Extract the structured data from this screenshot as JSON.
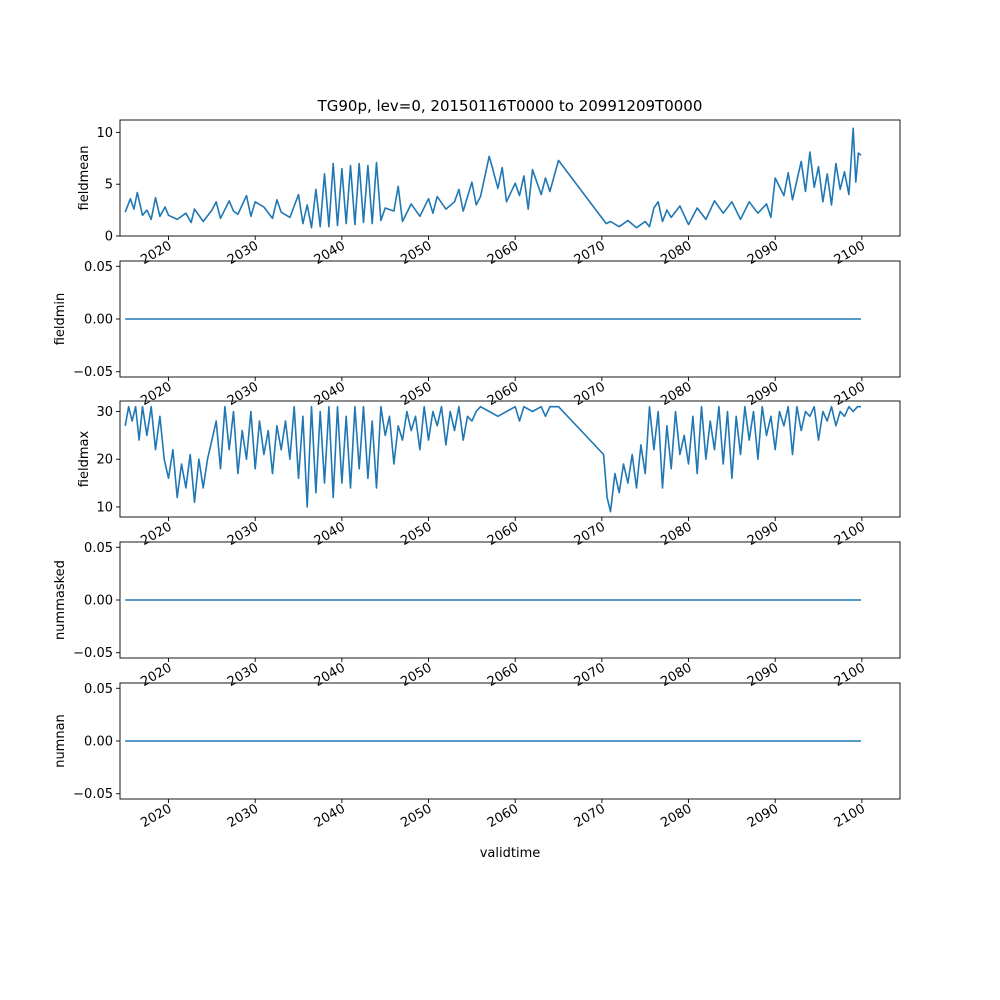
{
  "chart_data": {
    "type": "line",
    "title": "TG90p, lev=0, 20150116T0000 to 20991209T0000",
    "xlabel": "validtime",
    "line_color": "#1f77b4",
    "xlim": [
      2014.4,
      2104.4
    ],
    "xticks": [
      2020,
      2030,
      2040,
      2050,
      2060,
      2070,
      2080,
      2090,
      2100
    ],
    "panels": [
      {
        "ylabel": "fieldmean",
        "ylim": [
          0,
          11.2
        ],
        "yticks": [
          0,
          5,
          10
        ],
        "ytick_labels": [
          "0",
          "5",
          "10"
        ],
        "series": [
          {
            "x": [
              2015.0,
              2015.6,
              2016.0,
              2016.4,
              2017.0,
              2017.5,
              2018.0,
              2018.5,
              2019.0,
              2019.6,
              2020.0,
              2021.0,
              2022.0,
              2022.6,
              2023.0,
              2024.0,
              2025.0,
              2025.5,
              2026.0,
              2027.0,
              2027.5,
              2028.0,
              2029.0,
              2029.5,
              2030.0,
              2031.0,
              2032.0,
              2032.5,
              2033.0,
              2034.0,
              2035.0,
              2035.5,
              2036.0,
              2036.5,
              2037.0,
              2037.5,
              2038.0,
              2038.5,
              2039.0,
              2039.5,
              2040.0,
              2040.5,
              2041.0,
              2041.5,
              2042.0,
              2042.5,
              2043.0,
              2043.5,
              2044.0,
              2044.5,
              2045.0,
              2046.0,
              2046.5,
              2047.0,
              2048.0,
              2049.0,
              2050.0,
              2050.5,
              2051.0,
              2052.0,
              2053.0,
              2053.5,
              2054.0,
              2055.0,
              2055.5,
              2056.0,
              2057.0,
              2057.3,
              2058.0,
              2058.5,
              2059.0,
              2060.0,
              2060.5,
              2061.0,
              2061.5,
              2062.0,
              2063.0,
              2063.5,
              2064.0,
              2065.0,
              2070.5,
              2071.0,
              2072.0,
              2073.0,
              2074.0,
              2075.0,
              2075.5,
              2076.0,
              2076.5,
              2077.0,
              2077.5,
              2078.0,
              2079.0,
              2080.0,
              2081.0,
              2082.0,
              2083.0,
              2084.0,
              2085.0,
              2086.0,
              2087.0,
              2088.0,
              2089.0,
              2089.5,
              2090.0,
              2091.0,
              2091.5,
              2092.0,
              2093.0,
              2093.5,
              2094.0,
              2094.5,
              2095.0,
              2095.5,
              2096.0,
              2096.5,
              2097.0,
              2097.5,
              2098.0,
              2098.5,
              2099.0,
              2099.3,
              2099.6,
              2099.9
            ],
            "y": [
              2.3,
              3.6,
              2.6,
              4.2,
              2.0,
              2.5,
              1.6,
              3.7,
              1.9,
              2.8,
              2.0,
              1.6,
              2.2,
              1.3,
              2.6,
              1.4,
              2.5,
              3.3,
              1.7,
              3.4,
              2.4,
              2.1,
              3.9,
              1.9,
              3.3,
              2.8,
              1.7,
              3.5,
              2.3,
              1.8,
              4.0,
              1.2,
              3.0,
              0.8,
              4.5,
              0.9,
              6.0,
              0.9,
              7.0,
              1.0,
              6.5,
              1.2,
              6.8,
              1.1,
              7.0,
              1.3,
              6.8,
              1.2,
              7.1,
              1.5,
              2.7,
              2.4,
              4.8,
              1.4,
              3.1,
              1.9,
              3.6,
              2.2,
              3.8,
              2.6,
              3.3,
              4.5,
              2.4,
              5.2,
              3.0,
              3.8,
              7.7,
              6.8,
              4.6,
              6.6,
              3.3,
              5.1,
              3.9,
              5.8,
              2.6,
              6.4,
              4.0,
              5.6,
              4.3,
              7.3,
              1.2,
              1.4,
              0.9,
              1.5,
              0.8,
              1.4,
              0.9,
              2.7,
              3.3,
              1.4,
              2.5,
              1.8,
              2.9,
              1.1,
              2.7,
              1.6,
              3.4,
              2.2,
              3.3,
              1.6,
              3.3,
              2.2,
              3.1,
              1.8,
              5.6,
              3.9,
              6.1,
              3.5,
              7.2,
              4.3,
              8.1,
              4.7,
              6.7,
              3.3,
              6.0,
              3.0,
              7.0,
              4.5,
              6.2,
              4.0,
              10.4,
              5.2,
              8.0,
              7.8
            ]
          }
        ]
      },
      {
        "ylabel": "fieldmin",
        "ylim": [
          -0.055,
          0.055
        ],
        "yticks": [
          -0.05,
          0.0,
          0.05
        ],
        "ytick_labels": [
          "−0.05",
          "0.00",
          "0.05"
        ],
        "series": [
          {
            "x": [
              2015.0,
              2099.9
            ],
            "y": [
              0,
              0
            ]
          }
        ]
      },
      {
        "ylabel": "fieldmax",
        "ylim": [
          7.9,
          32.2
        ],
        "yticks": [
          10,
          20,
          30
        ],
        "ytick_labels": [
          "10",
          "20",
          "30"
        ],
        "series": [
          {
            "x": [
              2015.0,
              2015.4,
              2015.8,
              2016.2,
              2016.6,
              2017.0,
              2017.5,
              2018.0,
              2018.5,
              2019.0,
              2019.5,
              2020.0,
              2020.5,
              2021.0,
              2021.5,
              2022.0,
              2022.5,
              2023.0,
              2023.5,
              2024.0,
              2024.5,
              2025.0,
              2025.5,
              2026.0,
              2026.5,
              2027.0,
              2027.5,
              2028.0,
              2028.5,
              2029.0,
              2029.5,
              2030.0,
              2030.5,
              2031.0,
              2031.5,
              2032.0,
              2032.5,
              2033.0,
              2033.5,
              2034.0,
              2034.5,
              2035.0,
              2035.5,
              2036.0,
              2036.5,
              2037.0,
              2037.5,
              2038.0,
              2038.5,
              2039.0,
              2039.5,
              2040.0,
              2040.5,
              2041.0,
              2041.5,
              2042.0,
              2042.5,
              2043.0,
              2043.5,
              2044.0,
              2044.5,
              2045.0,
              2045.5,
              2046.0,
              2046.5,
              2047.0,
              2047.5,
              2048.0,
              2048.5,
              2049.0,
              2049.5,
              2050.0,
              2050.5,
              2051.0,
              2051.5,
              2052.0,
              2052.5,
              2053.0,
              2053.5,
              2054.0,
              2054.5,
              2055.0,
              2055.5,
              2056.0,
              2057.0,
              2058.0,
              2059.0,
              2060.0,
              2060.5,
              2061.0,
              2062.0,
              2063.0,
              2063.5,
              2064.0,
              2065.0,
              2070.2,
              2070.6,
              2071.0,
              2071.5,
              2072.0,
              2072.5,
              2073.0,
              2073.5,
              2074.0,
              2074.5,
              2075.0,
              2075.5,
              2076.0,
              2076.5,
              2077.0,
              2077.5,
              2078.0,
              2078.5,
              2079.0,
              2079.5,
              2080.0,
              2080.5,
              2081.0,
              2081.5,
              2082.0,
              2082.5,
              2083.0,
              2083.5,
              2084.0,
              2084.5,
              2085.0,
              2085.5,
              2086.0,
              2086.5,
              2087.0,
              2087.5,
              2088.0,
              2088.5,
              2089.0,
              2089.5,
              2090.0,
              2090.5,
              2091.0,
              2091.5,
              2092.0,
              2092.5,
              2093.0,
              2093.5,
              2094.0,
              2094.5,
              2095.0,
              2095.5,
              2096.0,
              2096.5,
              2097.0,
              2097.5,
              2098.0,
              2098.5,
              2099.0,
              2099.5,
              2099.9
            ],
            "y": [
              27,
              31,
              28,
              31,
              24,
              31,
              25,
              31,
              22,
              29,
              20,
              16,
              22,
              12,
              19,
              14,
              21,
              11,
              20,
              14,
              20,
              24,
              28,
              18,
              31,
              22,
              30,
              17,
              26,
              20,
              30,
              18,
              28,
              21,
              26,
              17,
              27,
              22,
              28,
              20,
              31,
              16,
              29,
              10,
              31,
              13,
              30,
              15,
              31,
              12,
              31,
              15,
              29,
              14,
              31,
              18,
              31,
              16,
              28,
              14,
              31,
              25,
              29,
              19,
              27,
              24,
              30,
              26,
              29,
              22,
              31,
              24,
              30,
              27,
              31,
              23,
              30,
              26,
              31,
              24,
              29,
              28,
              30,
              31,
              30,
              29,
              30,
              31,
              28,
              31,
              30,
              31,
              29,
              31,
              31,
              21,
              12,
              9,
              17,
              13,
              19,
              15,
              21,
              14,
              23,
              17,
              31,
              22,
              30,
              14,
              27,
              18,
              30,
              21,
              25,
              19,
              29,
              17,
              31,
              20,
              28,
              22,
              31,
              19,
              30,
              16,
              29,
              21,
              31,
              24,
              30,
              20,
              31,
              25,
              29,
              22,
              30,
              27,
              31,
              21,
              31,
              26,
              30,
              29,
              31,
              24,
              30,
              28,
              31,
              27,
              30,
              29,
              31,
              30,
              31,
              31
            ]
          }
        ]
      },
      {
        "ylabel": "nummasked",
        "ylim": [
          -0.055,
          0.055
        ],
        "yticks": [
          -0.05,
          0.0,
          0.05
        ],
        "ytick_labels": [
          "−0.05",
          "0.00",
          "0.05"
        ],
        "series": [
          {
            "x": [
              2015.0,
              2099.9
            ],
            "y": [
              0,
              0
            ]
          }
        ]
      },
      {
        "ylabel": "numnan",
        "ylim": [
          -0.055,
          0.055
        ],
        "yticks": [
          -0.05,
          0.0,
          0.05
        ],
        "ytick_labels": [
          "−0.05",
          "0.00",
          "0.05"
        ],
        "series": [
          {
            "x": [
              2015.0,
              2099.9
            ],
            "y": [
              0,
              0
            ]
          }
        ]
      }
    ]
  }
}
